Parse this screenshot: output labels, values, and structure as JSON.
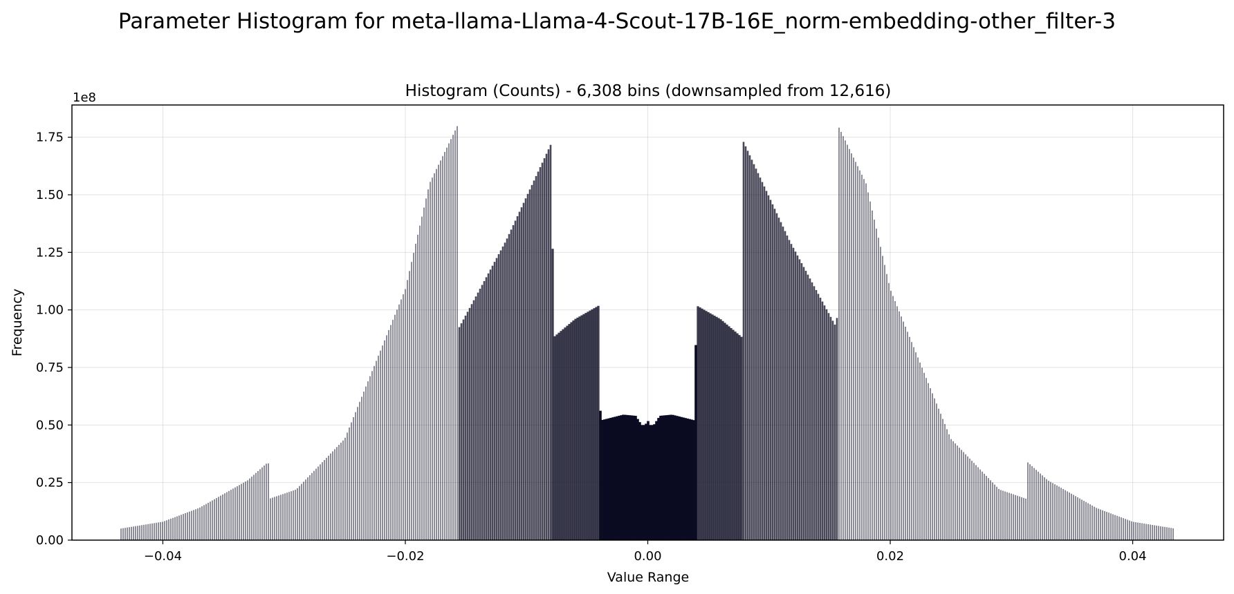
{
  "figure": {
    "suptitle": "Parameter Histogram for meta-llama-Llama-4-Scout-17B-16E_norm-embedding-other_filter-3"
  },
  "chart_data": {
    "type": "bar",
    "title": "Histogram (Counts) - 6,308 bins (downsampled from 12,616)",
    "xlabel": "Value Range",
    "ylabel": "Frequency",
    "y_scale_label": "1e8",
    "y_multiplier": 100000000,
    "xlim": [
      -0.0475,
      0.0475
    ],
    "ylim": [
      0,
      1.89
    ],
    "grid": true,
    "bar_color": "#0b0b22",
    "x_tick_values": [
      -0.04,
      -0.02,
      0.0,
      0.02,
      0.04
    ],
    "x_tick_labels": [
      "−0.04",
      "−0.02",
      "0.00",
      "0.02",
      "0.04"
    ],
    "y_tick_values": [
      0.0,
      0.25,
      0.5,
      0.75,
      1.0,
      1.25,
      1.5,
      1.75
    ],
    "y_tick_labels": [
      "0.00",
      "0.25",
      "0.50",
      "0.75",
      "1.00",
      "1.25",
      "1.50",
      "1.75"
    ],
    "x_range": [
      -0.0435,
      0.0435
    ],
    "profile_x": [
      0.0,
      0.0002,
      0.0005,
      0.001,
      0.002,
      0.0039,
      0.004,
      0.006,
      0.0078,
      0.0079,
      0.0117,
      0.0156,
      0.0157,
      0.018,
      0.02,
      0.025,
      0.029,
      0.0312,
      0.0313,
      0.033,
      0.037,
      0.04,
      0.0435
    ],
    "profile_y": [
      0.52,
      0.5,
      0.5,
      0.54,
      0.545,
      0.52,
      1.02,
      0.96,
      0.88,
      1.73,
      1.3,
      0.92,
      1.8,
      1.55,
      1.09,
      0.44,
      0.22,
      0.18,
      0.34,
      0.26,
      0.14,
      0.08,
      0.05
    ]
  }
}
